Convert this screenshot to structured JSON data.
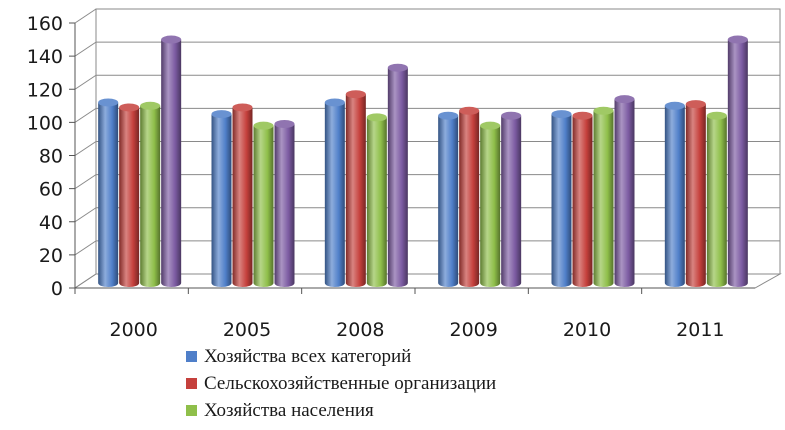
{
  "chart_data": {
    "type": "bar",
    "style": "3d-cylinder",
    "categories": [
      "2000",
      "2005",
      "2008",
      "2009",
      "2010",
      "2011"
    ],
    "series": [
      {
        "name": "Хозяйства всех категорий",
        "color": "#4f7fc9",
        "values": [
          109,
          102,
          109,
          101,
          102,
          107
        ]
      },
      {
        "name": "Сельскохозяйственные организации",
        "color": "#c5403c",
        "values": [
          106,
          106,
          114,
          104,
          101,
          108
        ]
      },
      {
        "name": "Хозяйства населения",
        "color": "#8fbf4a",
        "values": [
          107,
          95,
          100,
          95,
          104,
          101
        ]
      },
      {
        "name": "",
        "color": "#7c5ba2",
        "values": [
          147,
          96,
          130,
          101,
          111,
          147
        ]
      }
    ],
    "ylim": [
      0,
      160
    ],
    "yticks": [
      "0",
      "20",
      "40",
      "60",
      "80",
      "100",
      "120",
      "140",
      "160"
    ],
    "grid": true,
    "legend_position": "bottom",
    "title": "",
    "xlabel": "",
    "ylabel": ""
  }
}
